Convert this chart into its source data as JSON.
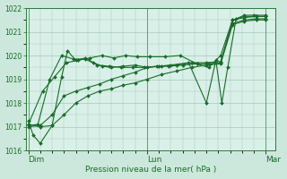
{
  "bg_color": "#cce8dc",
  "plot_bg_color": "#d8f0e8",
  "grid_color": "#a8c8b8",
  "line_color": "#1a6b2a",
  "marker_color": "#1a6b2a",
  "border_color": "#2a7a3a",
  "xlabel": "Pression niveau de la mer( hPa )",
  "xlabel_color": "#1a6b2a",
  "ylim": [
    1016,
    1022
  ],
  "yticks": [
    1016,
    1017,
    1018,
    1019,
    1020,
    1021,
    1022
  ],
  "xtick_labels": [
    "Dim",
    "Lun",
    "Mar"
  ],
  "xtick_positions": [
    0.0,
    1.0,
    2.0
  ],
  "xlim": [
    -0.02,
    2.08
  ],
  "series": [
    [
      0.0,
      1017.25,
      0.04,
      1016.65,
      0.1,
      1016.3,
      0.2,
      1017.05,
      0.28,
      1019.1,
      0.33,
      1020.2,
      0.4,
      1019.8,
      0.48,
      1019.9,
      0.55,
      1019.7,
      0.62,
      1019.55,
      0.7,
      1019.5,
      0.8,
      1019.55,
      0.9,
      1019.6,
      1.0,
      1019.5,
      1.1,
      1019.55,
      1.2,
      1019.6,
      1.35,
      1019.7,
      1.5,
      1018.0,
      1.58,
      1019.8,
      1.63,
      1018.0,
      1.68,
      1019.5,
      1.75,
      1021.55,
      1.82,
      1021.7,
      1.9,
      1021.7,
      2.0,
      1021.7
    ],
    [
      0.0,
      1017.05,
      0.08,
      1017.1,
      0.18,
      1019.0,
      0.28,
      1020.0,
      0.38,
      1019.85,
      0.48,
      1019.85,
      0.58,
      1019.6,
      0.68,
      1019.55,
      0.78,
      1019.5,
      0.88,
      1019.5,
      0.98,
      1019.5,
      1.08,
      1019.55,
      1.18,
      1019.55,
      1.3,
      1019.6,
      1.42,
      1019.65,
      1.52,
      1019.65,
      1.62,
      1019.7,
      1.72,
      1021.5,
      1.82,
      1021.65,
      1.92,
      1021.65,
      2.0,
      1021.65
    ],
    [
      0.0,
      1017.0,
      0.1,
      1017.05,
      0.2,
      1017.5,
      0.3,
      1018.3,
      0.4,
      1018.5,
      0.5,
      1018.65,
      0.6,
      1018.8,
      0.7,
      1019.0,
      0.8,
      1019.15,
      0.9,
      1019.3,
      1.0,
      1019.5,
      1.12,
      1019.55,
      1.25,
      1019.6,
      1.38,
      1019.7,
      1.5,
      1019.7,
      1.62,
      1019.75,
      1.72,
      1021.35,
      1.82,
      1021.5,
      1.92,
      1021.55,
      2.0,
      1021.55
    ],
    [
      0.0,
      1017.1,
      0.12,
      1018.5,
      0.22,
      1019.1,
      0.32,
      1019.7,
      0.42,
      1019.8,
      0.52,
      1019.9,
      0.62,
      1020.0,
      0.72,
      1019.9,
      0.82,
      1020.0,
      0.92,
      1019.95,
      1.02,
      1019.95,
      1.15,
      1019.95,
      1.28,
      1020.0,
      1.42,
      1019.65,
      1.52,
      1019.5,
      1.62,
      1020.0,
      1.72,
      1021.5,
      1.82,
      1021.6,
      1.92,
      1021.65,
      2.0,
      1021.65
    ],
    [
      0.0,
      1017.1,
      0.1,
      1017.0,
      0.2,
      1017.05,
      0.3,
      1017.5,
      0.4,
      1018.0,
      0.5,
      1018.3,
      0.6,
      1018.5,
      0.7,
      1018.6,
      0.8,
      1018.75,
      0.9,
      1018.85,
      1.0,
      1019.0,
      1.12,
      1019.2,
      1.25,
      1019.35,
      1.38,
      1019.5,
      1.5,
      1019.6,
      1.62,
      1019.65,
      1.72,
      1021.3,
      1.82,
      1021.45,
      1.92,
      1021.5,
      2.0,
      1021.5
    ]
  ]
}
